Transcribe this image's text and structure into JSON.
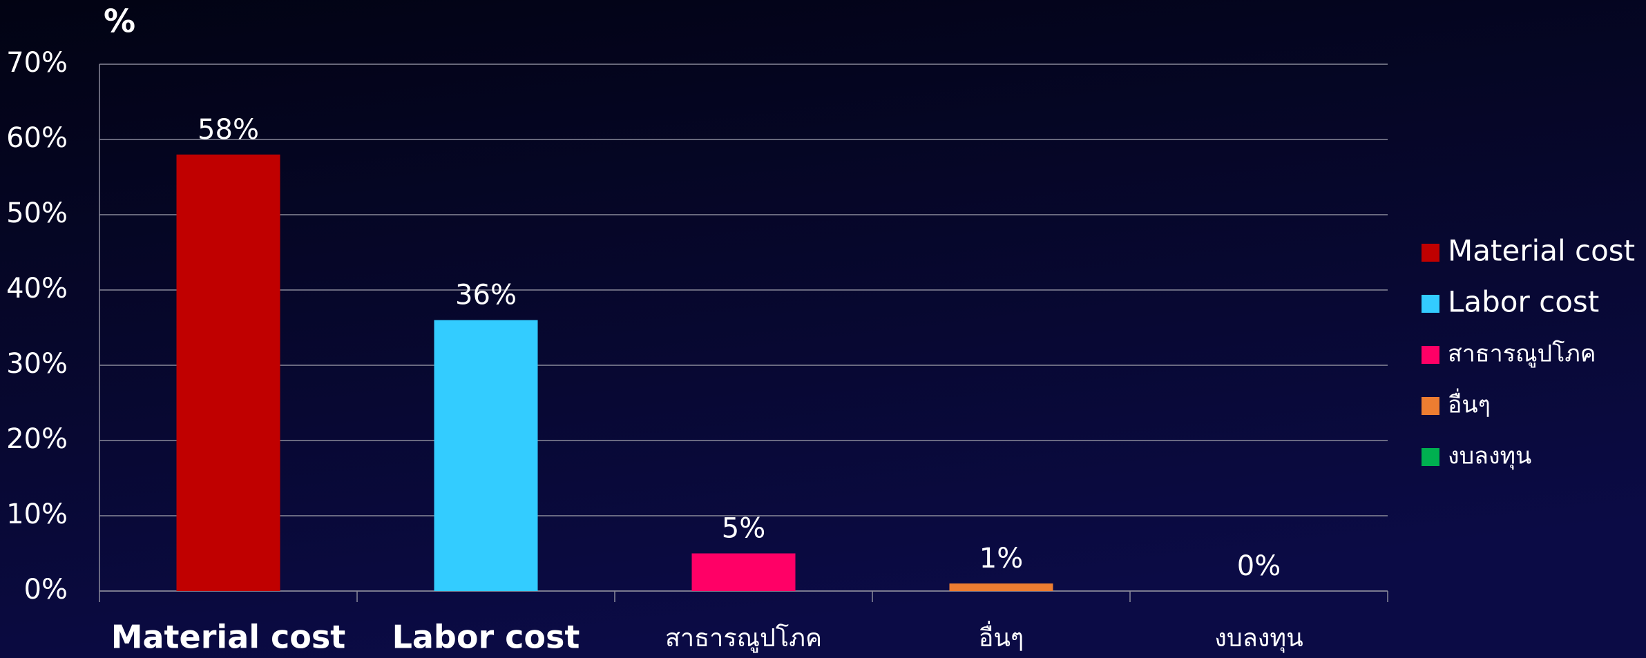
{
  "chart_data": {
    "type": "bar",
    "y_axis_title": "%",
    "categories": [
      "Material cost",
      "Labor cost",
      "สาธารณูปโภค",
      "อื่นๆ",
      "งบลงทุน"
    ],
    "values": [
      58,
      36,
      5,
      1,
      0
    ],
    "value_labels": [
      "58%",
      "36%",
      "5%",
      "1%",
      "0%"
    ],
    "colors": [
      "#c00000",
      "#33ccff",
      "#ff0066",
      "#ed7d31",
      "#00b050"
    ],
    "ylim": [
      0,
      70
    ],
    "yticks": [
      {
        "value": 0,
        "label": "0%"
      },
      {
        "value": 10,
        "label": "10%"
      },
      {
        "value": 20,
        "label": "20%"
      },
      {
        "value": 30,
        "label": "30%"
      },
      {
        "value": 40,
        "label": "40%"
      },
      {
        "value": 50,
        "label": "50%"
      },
      {
        "value": 60,
        "label": "60%"
      },
      {
        "value": 70,
        "label": "70%"
      }
    ],
    "grid": true,
    "legend": "right"
  }
}
